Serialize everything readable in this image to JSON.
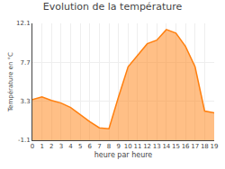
{
  "chart_data": {
    "type": "area",
    "title": "Evolution de la température",
    "xlabel": "heure par heure",
    "ylabel": "Température en °C",
    "x": [
      0,
      1,
      2,
      3,
      4,
      5,
      6,
      7,
      8,
      9,
      10,
      11,
      12,
      13,
      14,
      15,
      16,
      17,
      18,
      19
    ],
    "values": [
      3.5,
      3.8,
      3.4,
      3.1,
      2.6,
      1.8,
      1.0,
      0.3,
      0.2,
      3.8,
      7.2,
      8.5,
      9.8,
      10.2,
      11.4,
      11.0,
      9.5,
      7.2,
      2.2,
      2.0
    ],
    "xlim": [
      0,
      19
    ],
    "xticks": [
      0,
      1,
      2,
      3,
      4,
      5,
      6,
      7,
      8,
      9,
      10,
      11,
      12,
      13,
      14,
      15,
      16,
      17,
      18,
      19
    ],
    "ylim": [
      -1.1,
      12.1
    ],
    "yticks": [
      -1.1,
      3.3,
      7.7,
      12.1
    ],
    "grid": true
  }
}
